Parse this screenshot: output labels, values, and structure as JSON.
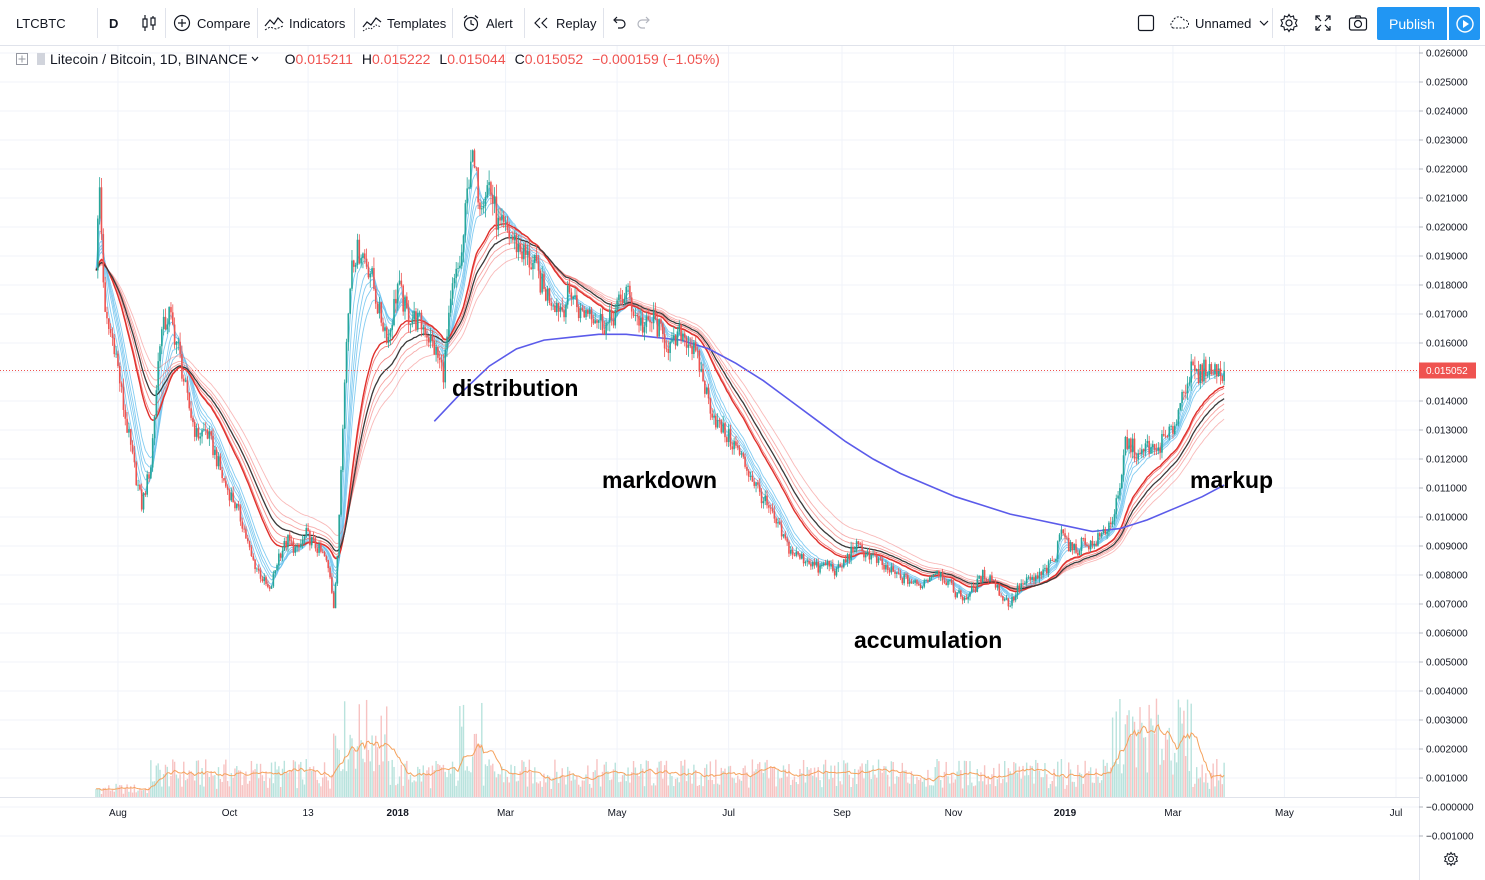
{
  "toolbar": {
    "symbol": "LTCBTC",
    "interval": "D",
    "compare": "Compare",
    "indicators": "Indicators",
    "templates": "Templates",
    "alert": "Alert",
    "replay": "Replay",
    "layout_name": "Unnamed",
    "publish": "Publish"
  },
  "legend": {
    "title": "Litecoin / Bitcoin, 1D, BINANCE",
    "open_label": "O",
    "open": "0.015211",
    "high_label": "H",
    "high": "0.015222",
    "low_label": "L",
    "low": "0.015044",
    "close_label": "C",
    "close": "0.015052",
    "change": "−0.000159 (−1.05%)"
  },
  "price_tag": "0.015052",
  "colors": {
    "up": "#26a69a",
    "down": "#ef5350",
    "publish": "#2196f3",
    "long_ma": "#5b5bea",
    "short_ribbon": "#6ec3ef",
    "long_ribbon": "#ef5350",
    "dark_ma": "#3b3b3b"
  },
  "chart_data": {
    "type": "line",
    "price_axis": [
      "0.026000",
      "0.025000",
      "0.024000",
      "0.023000",
      "0.022000",
      "0.021000",
      "0.020000",
      "0.019000",
      "0.018000",
      "0.017000",
      "0.016000",
      "0.015000",
      "0.014000",
      "0.013000",
      "0.012000",
      "0.011000",
      "0.010000",
      "0.009000",
      "0.008000",
      "0.007000",
      "0.006000",
      "0.005000",
      "0.004000",
      "0.003000",
      "0.002000",
      "0.001000",
      "−0.000000",
      "−0.001000"
    ],
    "price_ticks": [
      0.026,
      0.025,
      0.024,
      0.023,
      0.022,
      0.021,
      0.02,
      0.019,
      0.018,
      0.017,
      0.016,
      0.015,
      0.014,
      0.013,
      0.012,
      0.011,
      0.01,
      0.009,
      0.008,
      0.007,
      0.006,
      0.005,
      0.004,
      0.003,
      0.002,
      0.001,
      0.0,
      -0.001
    ],
    "time_axis": [
      {
        "label": "Aug",
        "day": 12,
        "bold": false
      },
      {
        "label": "Oct",
        "day": 73,
        "bold": false
      },
      {
        "label": "13",
        "day": 116,
        "bold": false
      },
      {
        "label": "2018",
        "day": 165,
        "bold": true
      },
      {
        "label": "Mar",
        "day": 224,
        "bold": false
      },
      {
        "label": "May",
        "day": 285,
        "bold": false
      },
      {
        "label": "Jul",
        "day": 346,
        "bold": false
      },
      {
        "label": "Sep",
        "day": 408,
        "bold": false
      },
      {
        "label": "Nov",
        "day": 469,
        "bold": false
      },
      {
        "label": "2019",
        "day": 530,
        "bold": true
      },
      {
        "label": "Mar",
        "day": 589,
        "bold": false
      },
      {
        "label": "May",
        "day": 650,
        "bold": false
      },
      {
        "label": "Jul",
        "day": 711,
        "bold": false
      }
    ],
    "last_day": 617,
    "price_path": [
      [
        0,
        0.0188
      ],
      [
        2,
        0.0213
      ],
      [
        5,
        0.0168
      ],
      [
        10,
        0.016
      ],
      [
        15,
        0.0138
      ],
      [
        20,
        0.012
      ],
      [
        25,
        0.0104
      ],
      [
        30,
        0.0118
      ],
      [
        35,
        0.0162
      ],
      [
        40,
        0.017
      ],
      [
        45,
        0.0158
      ],
      [
        50,
        0.014
      ],
      [
        55,
        0.0128
      ],
      [
        60,
        0.013
      ],
      [
        65,
        0.0122
      ],
      [
        70,
        0.0112
      ],
      [
        75,
        0.0106
      ],
      [
        80,
        0.0098
      ],
      [
        85,
        0.0086
      ],
      [
        90,
        0.008
      ],
      [
        95,
        0.0074
      ],
      [
        100,
        0.0087
      ],
      [
        105,
        0.0092
      ],
      [
        110,
        0.0088
      ],
      [
        115,
        0.0094
      ],
      [
        120,
        0.009
      ],
      [
        125,
        0.0086
      ],
      [
        128,
        0.008
      ],
      [
        130,
        0.007
      ],
      [
        132,
        0.0085
      ],
      [
        136,
        0.015
      ],
      [
        140,
        0.019
      ],
      [
        145,
        0.0192
      ],
      [
        150,
        0.0185
      ],
      [
        155,
        0.017
      ],
      [
        160,
        0.0162
      ],
      [
        165,
        0.018
      ],
      [
        170,
        0.017
      ],
      [
        175,
        0.0168
      ],
      [
        180,
        0.0165
      ],
      [
        185,
        0.0158
      ],
      [
        190,
        0.015
      ],
      [
        195,
        0.0178
      ],
      [
        200,
        0.019
      ],
      [
        205,
        0.0225
      ],
      [
        210,
        0.021
      ],
      [
        215,
        0.0215
      ],
      [
        220,
        0.02
      ],
      [
        225,
        0.0198
      ],
      [
        230,
        0.0194
      ],
      [
        235,
        0.019
      ],
      [
        240,
        0.0186
      ],
      [
        245,
        0.0178
      ],
      [
        250,
        0.0175
      ],
      [
        255,
        0.0172
      ],
      [
        260,
        0.0178
      ],
      [
        265,
        0.017
      ],
      [
        270,
        0.0172
      ],
      [
        275,
        0.0168
      ],
      [
        280,
        0.0166
      ],
      [
        285,
        0.0172
      ],
      [
        290,
        0.0178
      ],
      [
        295,
        0.017
      ],
      [
        300,
        0.0165
      ],
      [
        305,
        0.0168
      ],
      [
        310,
        0.0162
      ],
      [
        315,
        0.0158
      ],
      [
        320,
        0.0164
      ],
      [
        325,
        0.016
      ],
      [
        330,
        0.0152
      ],
      [
        335,
        0.014
      ],
      [
        340,
        0.0132
      ],
      [
        345,
        0.0128
      ],
      [
        350,
        0.0124
      ],
      [
        355,
        0.0118
      ],
      [
        360,
        0.0112
      ],
      [
        365,
        0.0106
      ],
      [
        370,
        0.01
      ],
      [
        375,
        0.0094
      ],
      [
        380,
        0.0088
      ],
      [
        385,
        0.0086
      ],
      [
        390,
        0.0085
      ],
      [
        395,
        0.0082
      ],
      [
        400,
        0.0084
      ],
      [
        405,
        0.0081
      ],
      [
        410,
        0.0085
      ],
      [
        415,
        0.009
      ],
      [
        420,
        0.0088
      ],
      [
        425,
        0.0086
      ],
      [
        430,
        0.0083
      ],
      [
        435,
        0.0081
      ],
      [
        440,
        0.0079
      ],
      [
        445,
        0.0078
      ],
      [
        450,
        0.0076
      ],
      [
        455,
        0.0079
      ],
      [
        460,
        0.0082
      ],
      [
        465,
        0.0078
      ],
      [
        470,
        0.0074
      ],
      [
        475,
        0.0072
      ],
      [
        480,
        0.0075
      ],
      [
        485,
        0.008
      ],
      [
        490,
        0.0079
      ],
      [
        495,
        0.0073
      ],
      [
        500,
        0.007
      ],
      [
        505,
        0.0076
      ],
      [
        510,
        0.0078
      ],
      [
        515,
        0.0079
      ],
      [
        520,
        0.0082
      ],
      [
        525,
        0.0086
      ],
      [
        528,
        0.0098
      ],
      [
        532,
        0.009
      ],
      [
        536,
        0.0088
      ],
      [
        540,
        0.0092
      ],
      [
        545,
        0.009
      ],
      [
        550,
        0.0094
      ],
      [
        555,
        0.0098
      ],
      [
        560,
        0.0108
      ],
      [
        563,
        0.0126
      ],
      [
        567,
        0.0124
      ],
      [
        571,
        0.012
      ],
      [
        575,
        0.0125
      ],
      [
        579,
        0.0122
      ],
      [
        583,
        0.0126
      ],
      [
        587,
        0.0128
      ],
      [
        591,
        0.0134
      ],
      [
        595,
        0.0145
      ],
      [
        599,
        0.015
      ],
      [
        603,
        0.0148
      ],
      [
        607,
        0.0152
      ],
      [
        611,
        0.015
      ],
      [
        614,
        0.0151
      ],
      [
        617,
        0.01505
      ]
    ],
    "long_ma_path": [
      [
        185,
        0.0133
      ],
      [
        200,
        0.0143
      ],
      [
        215,
        0.0152
      ],
      [
        230,
        0.0158
      ],
      [
        245,
        0.0161
      ],
      [
        260,
        0.0162
      ],
      [
        275,
        0.0163
      ],
      [
        290,
        0.0163
      ],
      [
        305,
        0.0162
      ],
      [
        320,
        0.0161
      ],
      [
        335,
        0.0158
      ],
      [
        350,
        0.0153
      ],
      [
        365,
        0.0147
      ],
      [
        380,
        0.014
      ],
      [
        395,
        0.0133
      ],
      [
        410,
        0.0126
      ],
      [
        425,
        0.012
      ],
      [
        440,
        0.0115
      ],
      [
        455,
        0.0111
      ],
      [
        470,
        0.0107
      ],
      [
        485,
        0.0104
      ],
      [
        500,
        0.0101
      ],
      [
        515,
        0.0099
      ],
      [
        530,
        0.0097
      ],
      [
        545,
        0.0095
      ],
      [
        560,
        0.0096
      ],
      [
        575,
        0.0099
      ],
      [
        590,
        0.0103
      ],
      [
        605,
        0.0107
      ],
      [
        617,
        0.0111
      ]
    ],
    "annotations": [
      "distribution",
      "markdown",
      "accumulation",
      "markup"
    ]
  }
}
